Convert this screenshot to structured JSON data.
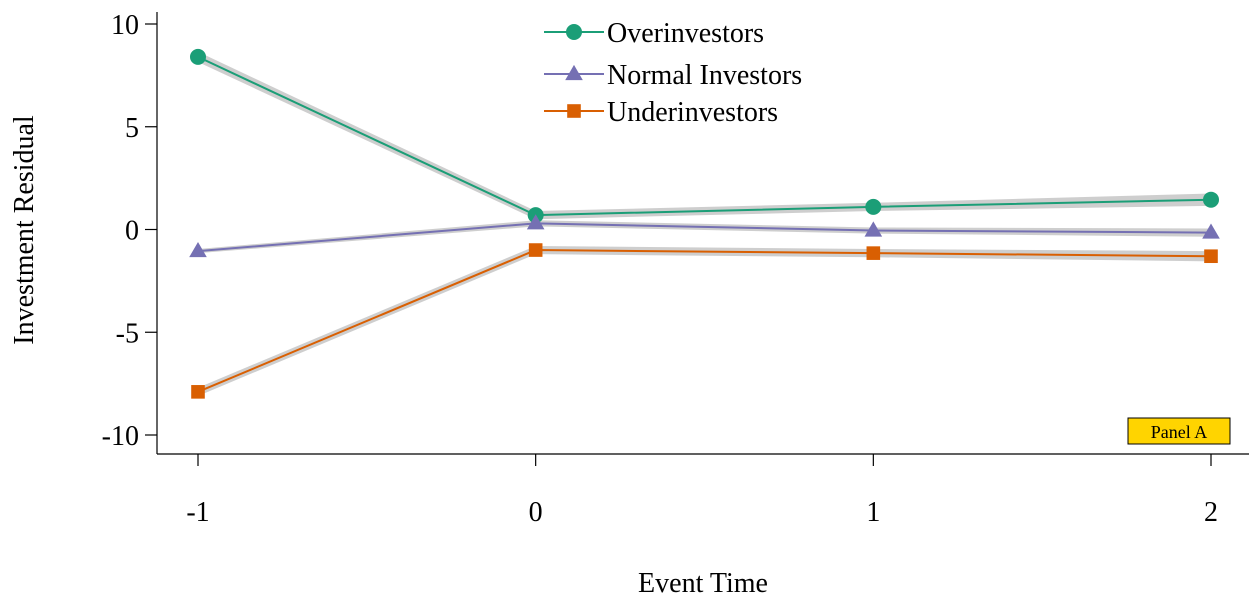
{
  "chart_data": {
    "type": "line",
    "xlabel": "Event Time",
    "ylabel": "Investment Residual",
    "x": [
      -1,
      0,
      1,
      2
    ],
    "xlim": [
      -1.12,
      2.12
    ],
    "ylim": [
      -10.6,
      10.4
    ],
    "yticks": [
      10,
      5,
      0,
      -5,
      -10
    ],
    "ytick_labels": [
      "10",
      "5",
      "0",
      "-5",
      "-10"
    ],
    "xtick_labels": [
      "-1",
      "0",
      "1",
      "2"
    ],
    "grid": false,
    "legend_position": "top-center",
    "series": [
      {
        "name": "Overinvestors",
        "values": [
          8.4,
          0.7,
          1.1,
          1.45
        ],
        "ci": [
          0.25,
          0.2,
          0.2,
          0.3
        ],
        "color": "#1b9e77",
        "marker": "circle"
      },
      {
        "name": "Normal Investors",
        "values": [
          -1.05,
          0.3,
          -0.05,
          -0.15
        ],
        "ci": [
          0.1,
          0.15,
          0.15,
          0.2
        ],
        "color": "#7570b3",
        "marker": "triangle"
      },
      {
        "name": "Underinvestors",
        "values": [
          -7.9,
          -1.0,
          -1.15,
          -1.3
        ],
        "ci": [
          0.2,
          0.2,
          0.2,
          0.25
        ],
        "color": "#d95f02",
        "marker": "square"
      }
    ],
    "annotation": {
      "text": "Panel A",
      "background": "#ffd400"
    },
    "ci_color": "#bdbdbd"
  }
}
